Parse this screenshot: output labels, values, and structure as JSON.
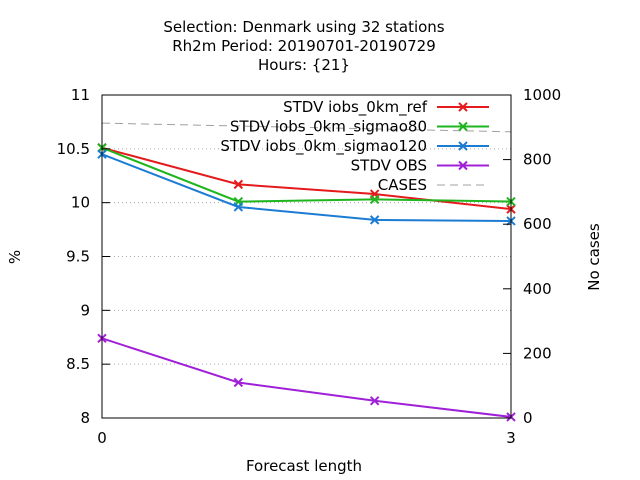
{
  "chart_data": {
    "type": "line",
    "title_lines": [
      "Selection: Denmark using    32 stations",
      "Rh2m   Period: 20190701-20190729",
      "Hours: {21}"
    ],
    "xlabel": "Forecast length",
    "ylabel": "%",
    "y2label": "No cases",
    "xlim": [
      0,
      3
    ],
    "ylim": [
      8,
      11
    ],
    "y2lim": [
      0,
      1000
    ],
    "x_ticks": [
      "0",
      "3"
    ],
    "y_ticks": [
      "8",
      "8.5",
      "9",
      "9.5",
      "10",
      "10.5",
      "11"
    ],
    "y2_ticks": [
      "0",
      "200",
      "400",
      "600",
      "800",
      "1000"
    ],
    "grid": "horizontal dotted",
    "legend_position": "top-right",
    "x": [
      0,
      1,
      2,
      3
    ],
    "series": [
      {
        "name": "STDV iobs_0km_ref",
        "color": "#e41a1c",
        "axis": "left",
        "values": [
          10.51,
          10.17,
          10.08,
          9.94
        ]
      },
      {
        "name": "STDV iobs_0km_sigmao80",
        "color": "#1eb51e",
        "axis": "left",
        "values": [
          10.51,
          10.01,
          10.03,
          10.01
        ]
      },
      {
        "name": "STDV iobs_0km_sigmao120",
        "color": "#1c7cd4",
        "axis": "left",
        "values": [
          10.45,
          9.96,
          9.84,
          9.83
        ]
      },
      {
        "name": "STDV OBS",
        "color": "#a020d8",
        "axis": "left",
        "values": [
          8.74,
          8.33,
          8.16,
          8.01
        ]
      },
      {
        "name": "CASES",
        "color": "#a0a0a0",
        "axis": "right",
        "dashed": true,
        "values": [
          913,
          904,
          895,
          886
        ]
      }
    ]
  }
}
